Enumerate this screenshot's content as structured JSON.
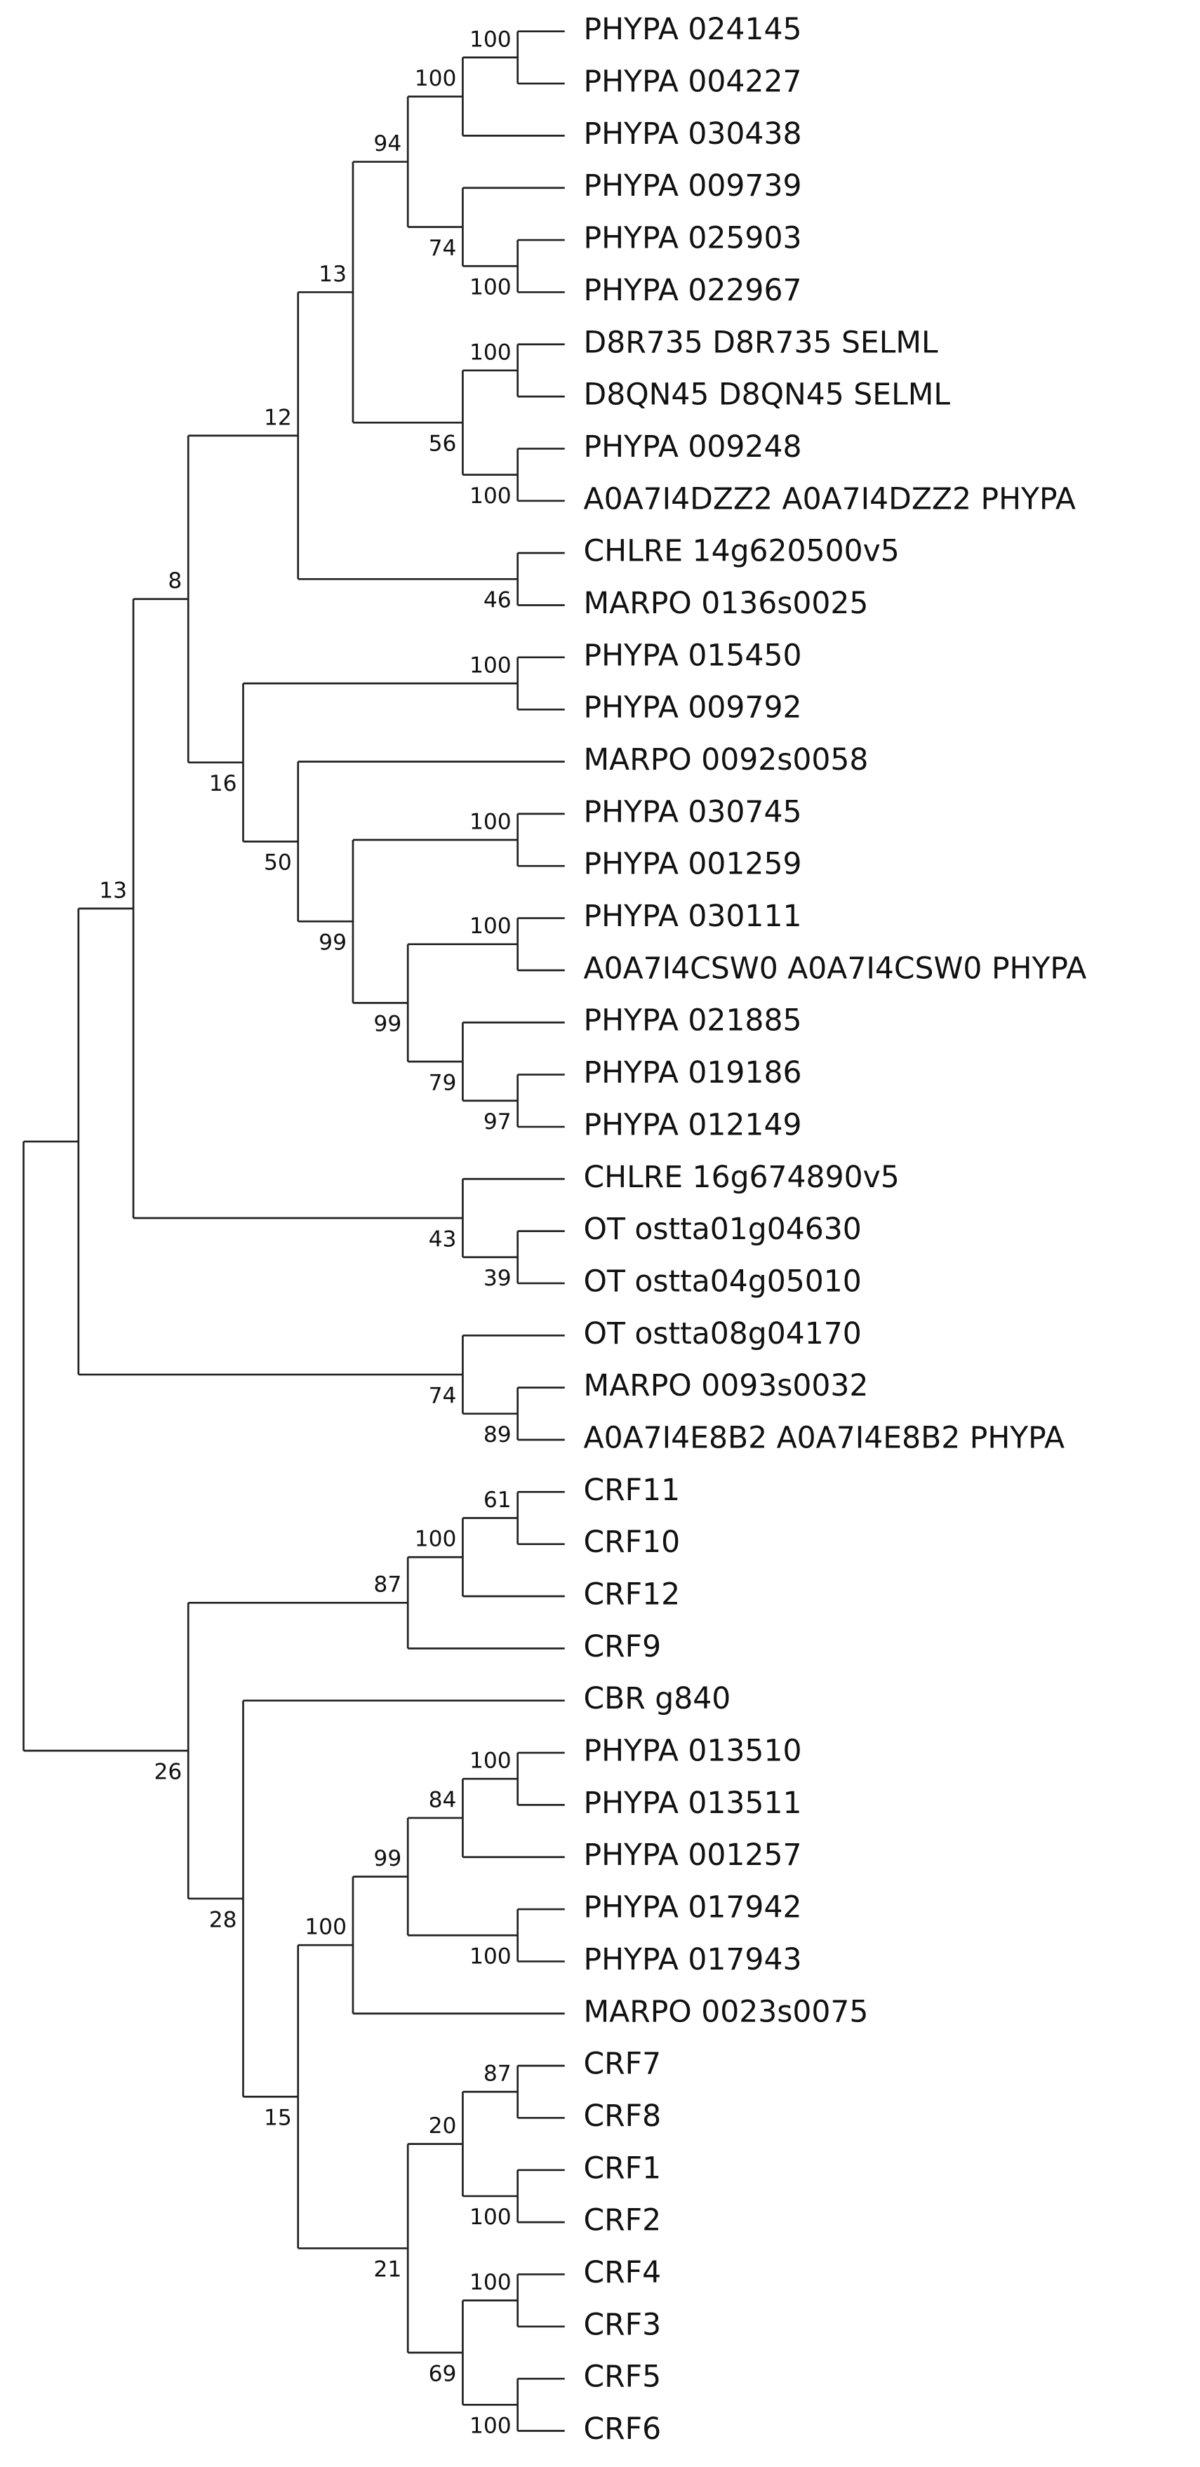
{
  "tree": {
    "children": [
      {
        "children": [
          {
            "support": 13,
            "children": [
              {
                "support": 8,
                "children": [
                  {
                    "support": 12,
                    "children": [
                      {
                        "support": 13,
                        "children": [
                          {
                            "support": 94,
                            "children": [
                              {
                                "support": 100,
                                "children": [
                                  {
                                    "support": 100,
                                    "children": [
                                      {
                                        "label": "PHYPA 024145"
                                      },
                                      {
                                        "label": "PHYPA 004227"
                                      }
                                    ]
                                  },
                                  {
                                    "label": "PHYPA 030438"
                                  }
                                ]
                              },
                              {
                                "support": 74,
                                "children": [
                                  {
                                    "label": "PHYPA 009739"
                                  },
                                  {
                                    "support": 100,
                                    "children": [
                                      {
                                        "label": "PHYPA 025903"
                                      },
                                      {
                                        "label": "PHYPA 022967"
                                      }
                                    ]
                                  }
                                ]
                              }
                            ]
                          },
                          {
                            "support": 56,
                            "children": [
                              {
                                "support": 100,
                                "children": [
                                  {
                                    "label": "D8R735 D8R735 SELML"
                                  },
                                  {
                                    "label": "D8QN45 D8QN45 SELML"
                                  }
                                ]
                              },
                              {
                                "support": 100,
                                "children": [
                                  {
                                    "label": "PHYPA 009248"
                                  },
                                  {
                                    "label": "A0A7I4DZZ2 A0A7I4DZZ2 PHYPA"
                                  }
                                ]
                              }
                            ]
                          }
                        ]
                      },
                      {
                        "support": 46,
                        "children": [
                          {
                            "label": "CHLRE 14g620500v5"
                          },
                          {
                            "label": "MARPO 0136s0025"
                          }
                        ]
                      }
                    ]
                  },
                  {
                    "support": 16,
                    "children": [
                      {
                        "support": 100,
                        "children": [
                          {
                            "label": "PHYPA 015450"
                          },
                          {
                            "label": "PHYPA 009792"
                          }
                        ]
                      },
                      {
                        "support": 50,
                        "children": [
                          {
                            "label": "MARPO 0092s0058"
                          },
                          {
                            "support": 99,
                            "children": [
                              {
                                "support": 100,
                                "children": [
                                  {
                                    "label": "PHYPA 030745"
                                  },
                                  {
                                    "label": "PHYPA 001259"
                                  }
                                ]
                              },
                              {
                                "support": 99,
                                "children": [
                                  {
                                    "support": 100,
                                    "children": [
                                      {
                                        "label": "PHYPA 030111"
                                      },
                                      {
                                        "label": "A0A7I4CSW0 A0A7I4CSW0 PHYPA"
                                      }
                                    ]
                                  },
                                  {
                                    "support": 79,
                                    "children": [
                                      {
                                        "label": "PHYPA 021885"
                                      },
                                      {
                                        "support": 97,
                                        "children": [
                                          {
                                            "label": "PHYPA 019186"
                                          },
                                          {
                                            "label": "PHYPA 012149"
                                          }
                                        ]
                                      }
                                    ]
                                  }
                                ]
                              }
                            ]
                          }
                        ]
                      }
                    ]
                  }
                ]
              },
              {
                "support": 43,
                "children": [
                  {
                    "label": "CHLRE 16g674890v5"
                  },
                  {
                    "support": 39,
                    "children": [
                      {
                        "label": "OT ostta01g04630"
                      },
                      {
                        "label": "OT ostta04g05010"
                      }
                    ]
                  }
                ]
              }
            ]
          },
          {
            "support": 74,
            "children": [
              {
                "label": "OT ostta08g04170"
              },
              {
                "support": 89,
                "children": [
                  {
                    "label": "MARPO 0093s0032"
                  },
                  {
                    "label": "A0A7I4E8B2 A0A7I4E8B2 PHYPA"
                  }
                ]
              }
            ]
          }
        ]
      },
      {
        "support": 26,
        "children": [
          {
            "support": 87,
            "children": [
              {
                "support": 100,
                "children": [
                  {
                    "support": 61,
                    "children": [
                      {
                        "label": "CRF11"
                      },
                      {
                        "label": "CRF10"
                      }
                    ]
                  },
                  {
                    "label": "CRF12"
                  }
                ]
              },
              {
                "label": "CRF9"
              }
            ]
          },
          {
            "support": 28,
            "children": [
              {
                "label": "CBR g840"
              },
              {
                "support": 15,
                "children": [
                  {
                    "support": 100,
                    "children": [
                      {
                        "support": 99,
                        "children": [
                          {
                            "support": 84,
                            "children": [
                              {
                                "support": 100,
                                "children": [
                                  {
                                    "label": "PHYPA 013510"
                                  },
                                  {
                                    "label": "PHYPA 013511"
                                  }
                                ]
                              },
                              {
                                "label": "PHYPA 001257"
                              }
                            ]
                          },
                          {
                            "support": 100,
                            "children": [
                              {
                                "label": "PHYPA 017942"
                              },
                              {
                                "label": "PHYPA 017943"
                              }
                            ]
                          }
                        ]
                      },
                      {
                        "label": "MARPO 0023s0075"
                      }
                    ]
                  },
                  {
                    "support": 21,
                    "children": [
                      {
                        "support": 20,
                        "children": [
                          {
                            "support": 87,
                            "children": [
                              {
                                "label": "CRF7"
                              },
                              {
                                "label": "CRF8"
                              }
                            ]
                          },
                          {
                            "support": 100,
                            "children": [
                              {
                                "label": "CRF1"
                              },
                              {
                                "label": "CRF2"
                              }
                            ]
                          }
                        ]
                      },
                      {
                        "support": 69,
                        "children": [
                          {
                            "support": 100,
                            "children": [
                              {
                                "label": "CRF4"
                              },
                              {
                                "label": "CRF3"
                              }
                            ]
                          },
                          {
                            "support": 100,
                            "children": [
                              {
                                "label": "CRF5"
                              },
                              {
                                "label": "CRF6"
                              }
                            ]
                          }
                        ]
                      }
                    ]
                  }
                ]
              }
            ]
          }
        ]
      }
    ]
  }
}
